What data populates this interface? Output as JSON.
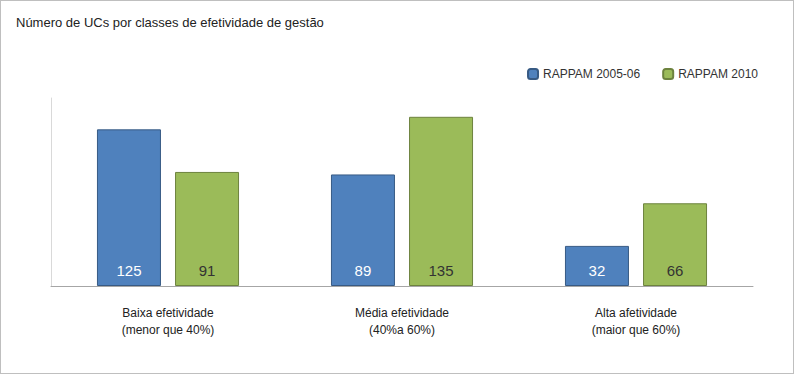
{
  "chart_data": {
    "type": "bar",
    "title": "Número de UCs por classes de efetividade de gestão",
    "categories": [
      "Baixa efetividade\n(menor que 40%)",
      "Média efetividade\n(40%a 60%)",
      "Alta afetividade\n(maior que 60%)"
    ],
    "series": [
      {
        "name": "RAPPAM 2005-06",
        "color": "#4f81bd",
        "values": [
          125,
          89,
          32
        ]
      },
      {
        "name": "RAPPAM 2010",
        "color": "#9bbb59",
        "values": [
          91,
          135,
          66
        ]
      }
    ],
    "ylim": [
      0,
      150
    ],
    "grid": false,
    "legend": "top-right",
    "data_labels": true,
    "tick_labels": "x"
  }
}
